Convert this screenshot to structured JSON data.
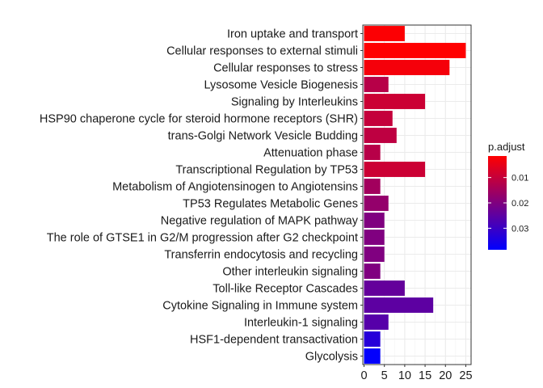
{
  "chart_data": {
    "type": "bar",
    "orientation": "horizontal",
    "categories": [
      "Iron uptake and transport",
      "Cellular responses to external stimuli",
      "Cellular responses to stress",
      "Lysosome Vesicle Biogenesis",
      "Signaling by Interleukins",
      "HSP90 chaperone cycle for steroid hormone receptors (SHR)",
      "trans-Golgi Network Vesicle Budding",
      "Attenuation phase",
      "Transcriptional Regulation by TP53",
      "Metabolism of Angiotensinogen to Angiotensins",
      "TP53 Regulates Metabolic Genes",
      "Negative regulation of MAPK pathway",
      "The role of GTSE1 in G2/M progression after G2 checkpoint",
      "Transferrin endocytosis and recycling",
      "Other interleukin signaling",
      "Toll-like Receptor Cascades",
      "Cytokine Signaling in Immune system",
      "Interleukin-1 signaling",
      "HSF1-dependent transactivation",
      "Glycolysis"
    ],
    "values": [
      10,
      25,
      21,
      6,
      15,
      7,
      8,
      4,
      15,
      4,
      6,
      5,
      5,
      5,
      4,
      10,
      17,
      6,
      4,
      4
    ],
    "p_adjust": [
      0.002,
      0.0015,
      0.003,
      0.012,
      0.009,
      0.01,
      0.011,
      0.012,
      0.009,
      0.015,
      0.017,
      0.02,
      0.02,
      0.02,
      0.02,
      0.024,
      0.025,
      0.026,
      0.033,
      0.038
    ],
    "x_ticks": [
      0,
      5,
      10,
      15,
      20,
      25
    ],
    "xlim": [
      -0.3,
      26.3
    ],
    "grid": true,
    "legend": {
      "title": "p.adjust",
      "position": "right",
      "ticks": [
        0.01,
        0.02,
        0.03
      ],
      "tick_labels": [
        "0.01",
        "0.02",
        "0.03"
      ],
      "range": [
        0.0015,
        0.0385
      ],
      "colors": {
        "low": "#ff0000",
        "high": "#0000ff"
      }
    },
    "colors": {
      "panel_background": "#ffffff",
      "grid": "#ebebeb",
      "border": "#333333"
    }
  }
}
